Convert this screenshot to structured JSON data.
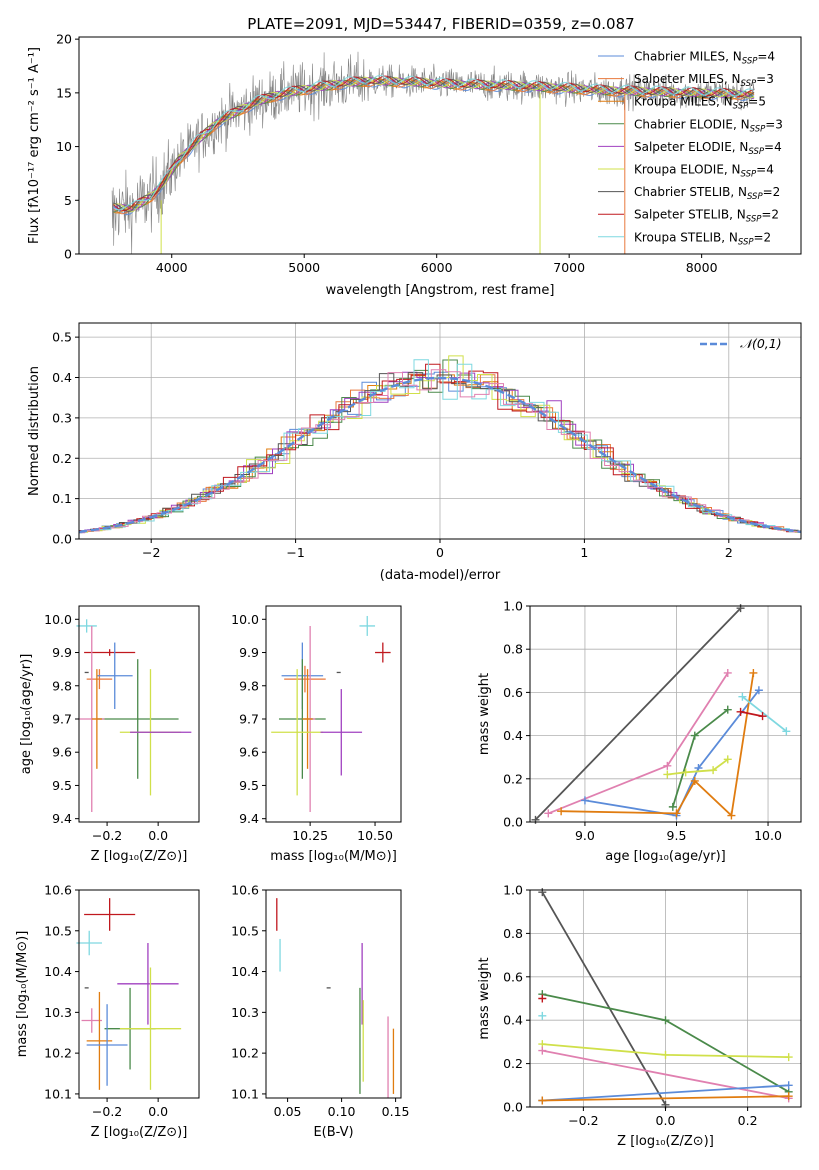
{
  "title": "PLATE=2091, MJD=53447, FIBERID=0359, z=0.087",
  "chart_data": [
    {
      "id": "spectrum",
      "type": "line",
      "xlabel": "wavelength [Angstrom, rest frame]",
      "ylabel": "Flux [fλ10⁻¹⁷ erg cm⁻² s⁻¹ A⁻¹]",
      "xlim": [
        3300,
        8750
      ],
      "ylim": [
        0,
        20.2
      ],
      "xticks": [
        4000,
        5000,
        6000,
        7000,
        8000
      ],
      "yticks": [
        0,
        5,
        10,
        15,
        20
      ],
      "continuum": {
        "x": [
          3550,
          3700,
          3850,
          3950,
          4050,
          4200,
          4350,
          4500,
          4650,
          4800,
          4950,
          5100,
          5300,
          5500,
          5800,
          6100,
          6400,
          6700,
          7000,
          7300,
          7600,
          7900,
          8200,
          8400
        ],
        "y": [
          4.3,
          4.2,
          5.4,
          6.8,
          8.7,
          10.6,
          12.3,
          13.3,
          14.2,
          14.8,
          15.2,
          15.5,
          15.9,
          16.1,
          16.0,
          15.8,
          15.7,
          15.6,
          15.4,
          15.2,
          15.1,
          15.0,
          14.9,
          14.8
        ]
      },
      "series": [
        {
          "name": "Chabrier MILES, N_SSP=4",
          "color": "#5b8bd9"
        },
        {
          "name": "Salpeter MILES, N_SSP=3",
          "color": "#e8783c"
        },
        {
          "name": "Kroupa MILES, N_SSP=5",
          "color": "#e07c10"
        },
        {
          "name": "Chabrier ELODIE, N_SSP=3",
          "color": "#4a8a4a"
        },
        {
          "name": "Salpeter ELODIE, N_SSP=4",
          "color": "#a040c0"
        },
        {
          "name": "Kroupa ELODIE, N_SSP=4",
          "color": "#d0e04a"
        },
        {
          "name": "Chabrier STELIB, N_SSP=2",
          "color": "#555555"
        },
        {
          "name": "Salpeter STELIB, N_SSP=2",
          "color": "#c0181e"
        },
        {
          "name": "Kroupa STELIB, N_SSP=2",
          "color": "#7fd8e0"
        }
      ],
      "legend_labels": [
        {
          "name": "Chabrier MILES, N",
          "sub": "SSP",
          "tail": "=4"
        },
        {
          "name": "Salpeter MILES, N",
          "sub": "SSP",
          "tail": "=3"
        },
        {
          "name": "Kroupa MILES, N",
          "sub": "SSP",
          "tail": "=5"
        },
        {
          "name": "Chabrier ELODIE, N",
          "sub": "SSP",
          "tail": "=3"
        },
        {
          "name": "Salpeter ELODIE, N",
          "sub": "SSP",
          "tail": "=4"
        },
        {
          "name": "Kroupa ELODIE, N",
          "sub": "SSP",
          "tail": "=4"
        },
        {
          "name": "Chabrier STELIB, N",
          "sub": "SSP",
          "tail": "=2"
        },
        {
          "name": "Salpeter STELIB, N",
          "sub": "SSP",
          "tail": "=2"
        },
        {
          "name": "Kroupa STELIB, N",
          "sub": "SSP",
          "tail": "=2"
        }
      ],
      "legend_placement": "upper right"
    },
    {
      "id": "residuals",
      "type": "histogram",
      "xlabel": "(data-model)/error",
      "ylabel": "Normed distribution",
      "xlim": [
        -2.5,
        2.5
      ],
      "ylim": [
        0,
        0.535
      ],
      "xticks": [
        -2,
        -1,
        0,
        1,
        2
      ],
      "yticks": [
        0.0,
        0.1,
        0.2,
        0.3,
        0.4,
        0.5
      ],
      "grid": true,
      "bin_width": 0.1,
      "reference": {
        "name": "𝒩(0,1)",
        "style": "dashed",
        "color": "#5b8bd9",
        "mean": 0,
        "sigma": 1
      },
      "legend_placement": "upper right"
    },
    {
      "id": "age_vs_Z",
      "type": "errorbar",
      "xlabel": "Z [log₁₀(Z/Z⊙)]",
      "ylabel": "age [log₁₀(age/yr)]",
      "xlim": [
        -0.31,
        0.16
      ],
      "ylim": [
        9.39,
        10.04
      ],
      "xticks": [
        -0.2,
        0.0
      ],
      "yticks": [
        9.4,
        9.5,
        9.6,
        9.7,
        9.8,
        9.9,
        10.0
      ],
      "points": [
        {
          "x": -0.28,
          "xerr": 0.0,
          "y": 9.84,
          "yerr": 0.0,
          "color": "#555555"
        },
        {
          "x": -0.23,
          "xerr": 0.05,
          "y": 9.82,
          "yerr": 0.03,
          "color": "#e8783c"
        },
        {
          "x": -0.28,
          "xerr": 0.04,
          "y": 9.98,
          "yerr": 0.02,
          "color": "#7fd8e0"
        },
        {
          "x": -0.19,
          "xerr": 0.1,
          "y": 9.9,
          "yerr": 0.01,
          "color": "#c0181e"
        },
        {
          "x": -0.17,
          "xerr": 0.07,
          "y": 9.83,
          "yerr": 0.1,
          "color": "#5b8bd9"
        },
        {
          "x": -0.08,
          "xerr": 0.16,
          "y": 9.7,
          "yerr": 0.18,
          "color": "#4a8a4a"
        },
        {
          "x": -0.26,
          "xerr": 0.05,
          "y": 9.7,
          "yerr": 0.28,
          "color": "#e080b0"
        },
        {
          "x": -0.24,
          "xerr": 0.02,
          "y": 9.7,
          "yerr": 0.15,
          "color": "#e07c10"
        },
        {
          "x": -0.03,
          "xerr": 0.12,
          "y": 9.66,
          "yerr": 0.19,
          "color": "#d0e04a"
        },
        {
          "x": 0.01,
          "xerr": 0.12,
          "y": 9.66,
          "yerr": 0.0,
          "color": "#a040c0"
        }
      ]
    },
    {
      "id": "age_vs_mass",
      "type": "errorbar",
      "xlabel": "mass [log₁₀(M/M⊙)]",
      "xlim": [
        10.08,
        10.6
      ],
      "ylim": [
        9.39,
        10.04
      ],
      "xticks": [
        10.25,
        10.5
      ],
      "yticks": [
        9.4,
        9.5,
        9.6,
        9.7,
        9.8,
        9.9,
        10.0
      ],
      "points": [
        {
          "x": 10.36,
          "xerr": 0.0,
          "y": 9.84,
          "yerr": 0.0,
          "color": "#555555"
        },
        {
          "x": 10.23,
          "xerr": 0.08,
          "y": 9.82,
          "yerr": 0.04,
          "color": "#e8783c"
        },
        {
          "x": 10.47,
          "xerr": 0.03,
          "y": 9.98,
          "yerr": 0.03,
          "color": "#7fd8e0"
        },
        {
          "x": 10.53,
          "xerr": 0.03,
          "y": 9.9,
          "yerr": 0.03,
          "color": "#c0181e"
        },
        {
          "x": 10.22,
          "xerr": 0.08,
          "y": 9.83,
          "yerr": 0.1,
          "color": "#5b8bd9"
        },
        {
          "x": 10.22,
          "xerr": 0.09,
          "y": 9.7,
          "yerr": 0.18,
          "color": "#4a8a4a"
        },
        {
          "x": 10.25,
          "xerr": 0.02,
          "y": 9.7,
          "yerr": 0.28,
          "color": "#e080b0"
        },
        {
          "x": 10.24,
          "xerr": 0.02,
          "y": 9.7,
          "yerr": 0.15,
          "color": "#e07c10"
        },
        {
          "x": 10.2,
          "xerr": 0.1,
          "y": 9.66,
          "yerr": 0.19,
          "color": "#d0e04a"
        },
        {
          "x": 10.37,
          "xerr": 0.08,
          "y": 9.66,
          "yerr": 0.13,
          "color": "#a040c0"
        }
      ]
    },
    {
      "id": "weight_vs_age",
      "type": "line",
      "xlabel": "age [log₁₀(age/yr)]",
      "ylabel": "mass weight",
      "xlim": [
        8.7,
        10.18
      ],
      "ylim": [
        0,
        1.0
      ],
      "xticks": [
        9.0,
        9.5,
        10.0
      ],
      "yticks": [
        0.0,
        0.2,
        0.4,
        0.6,
        0.8,
        1.0
      ],
      "grid": true,
      "series": [
        {
          "color": "#555555",
          "x": [
            8.73,
            9.85
          ],
          "y": [
            0.01,
            0.99
          ]
        },
        {
          "color": "#e080b0",
          "x": [
            8.8,
            9.45,
            9.78
          ],
          "y": [
            0.04,
            0.26,
            0.69
          ]
        },
        {
          "color": "#5b8bd9",
          "x": [
            9.0,
            9.5,
            9.62,
            9.95
          ],
          "y": [
            0.1,
            0.03,
            0.25,
            0.61
          ]
        },
        {
          "color": "#4a8a4a",
          "x": [
            9.48,
            9.6,
            9.78
          ],
          "y": [
            0.07,
            0.4,
            0.52
          ]
        },
        {
          "color": "#d0e04a",
          "x": [
            9.45,
            9.55,
            9.7,
            9.78
          ],
          "y": [
            0.22,
            0.23,
            0.24,
            0.29
          ]
        },
        {
          "color": "#e07c10",
          "x": [
            8.87,
            9.5,
            9.6,
            9.8,
            9.92
          ],
          "y": [
            0.05,
            0.04,
            0.19,
            0.03,
            0.69
          ]
        },
        {
          "color": "#7fd8e0",
          "x": [
            9.86,
            10.1
          ],
          "y": [
            0.58,
            0.42
          ]
        },
        {
          "color": "#c0181e",
          "x": [
            9.85,
            9.97
          ],
          "y": [
            0.51,
            0.49
          ]
        }
      ]
    },
    {
      "id": "mass_vs_Z",
      "type": "errorbar",
      "xlabel": "Z [log₁₀(Z/Z⊙)]",
      "ylabel": "mass [log₁₀(M/M⊙)]",
      "xlim": [
        -0.31,
        0.16
      ],
      "ylim": [
        10.09,
        10.6
      ],
      "xticks": [
        -0.2,
        0.0
      ],
      "yticks": [
        10.1,
        10.2,
        10.3,
        10.4,
        10.5,
        10.6
      ],
      "points": [
        {
          "x": -0.19,
          "xerr": 0.1,
          "y": 10.54,
          "yerr": 0.04,
          "color": "#c0181e"
        },
        {
          "x": -0.27,
          "xerr": 0.05,
          "y": 10.47,
          "yerr": 0.03,
          "color": "#7fd8e0"
        },
        {
          "x": -0.28,
          "xerr": 0.0,
          "y": 10.36,
          "yerr": 0.0,
          "color": "#555555"
        },
        {
          "x": -0.04,
          "xerr": 0.12,
          "y": 10.37,
          "yerr": 0.1,
          "color": "#a040c0"
        },
        {
          "x": -0.26,
          "xerr": 0.04,
          "y": 10.28,
          "yerr": 0.03,
          "color": "#e080b0"
        },
        {
          "x": -0.11,
          "xerr": 0.1,
          "y": 10.26,
          "yerr": 0.1,
          "color": "#4a8a4a"
        },
        {
          "x": -0.03,
          "xerr": 0.12,
          "y": 10.26,
          "yerr": 0.15,
          "color": "#d0e04a"
        },
        {
          "x": -0.23,
          "xerr": 0.05,
          "y": 10.23,
          "yerr": 0.12,
          "color": "#e07c10"
        },
        {
          "x": -0.2,
          "xerr": 0.08,
          "y": 10.22,
          "yerr": 0.1,
          "color": "#5b8bd9"
        }
      ]
    },
    {
      "id": "mass_vs_ebv",
      "type": "errorbar",
      "xlabel": "E(B-V)",
      "xlim": [
        0.03,
        0.155
      ],
      "ylim": [
        10.09,
        10.6
      ],
      "xticks": [
        0.05,
        0.1,
        0.15
      ],
      "yticks": [
        10.1,
        10.2,
        10.3,
        10.4,
        10.5,
        10.6
      ],
      "points": [
        {
          "x": 0.04,
          "xerr": 0.0,
          "y": 10.54,
          "yerr": 0.04,
          "color": "#c0181e"
        },
        {
          "x": 0.043,
          "xerr": 0.0,
          "y": 10.44,
          "yerr": 0.04,
          "color": "#7fd8e0"
        },
        {
          "x": 0.088,
          "xerr": 0.0,
          "y": 10.36,
          "yerr": 0.0,
          "color": "#555555"
        },
        {
          "x": 0.119,
          "xerr": 0.0,
          "y": 10.37,
          "yerr": 0.1,
          "color": "#a040c0"
        },
        {
          "x": 0.117,
          "xerr": 0.0,
          "y": 10.23,
          "yerr": 0.13,
          "color": "#4a8a4a"
        },
        {
          "x": 0.12,
          "xerr": 0.0,
          "y": 10.23,
          "yerr": 0.1,
          "color": "#d0e04a"
        },
        {
          "x": 0.143,
          "xerr": 0.0,
          "y": 10.19,
          "yerr": 0.1,
          "color": "#e080b0"
        },
        {
          "x": 0.148,
          "xerr": 0.0,
          "y": 10.18,
          "yerr": 0.08,
          "color": "#e07c10"
        }
      ]
    },
    {
      "id": "weight_vs_Z",
      "type": "line",
      "xlabel": "Z [log₁₀(Z/Z⊙)]",
      "ylabel": "mass weight",
      "xlim": [
        -0.33,
        0.33
      ],
      "ylim": [
        0,
        1.0
      ],
      "xticks": [
        -0.2,
        0.0,
        0.2
      ],
      "yticks": [
        0.0,
        0.2,
        0.4,
        0.6,
        0.8,
        1.0
      ],
      "grid": true,
      "series": [
        {
          "color": "#555555",
          "x": [
            -0.3,
            0.0
          ],
          "y": [
            0.99,
            0.01
          ]
        },
        {
          "color": "#4a8a4a",
          "x": [
            -0.3,
            0.0,
            0.3
          ],
          "y": [
            0.52,
            0.4,
            0.07
          ]
        },
        {
          "color": "#d0e04a",
          "x": [
            -0.3,
            0.0,
            0.3
          ],
          "y": [
            0.29,
            0.24,
            0.23
          ]
        },
        {
          "color": "#e080b0",
          "x": [
            -0.3,
            0.3
          ],
          "y": [
            0.26,
            0.04
          ]
        },
        {
          "color": "#5b8bd9",
          "x": [
            -0.3,
            0.3
          ],
          "y": [
            0.03,
            0.1
          ]
        },
        {
          "color": "#e07c10",
          "x": [
            -0.3,
            0.3
          ],
          "y": [
            0.03,
            0.05
          ]
        },
        {
          "color": "#7fd8e0",
          "x": [
            -0.3
          ],
          "y": [
            0.42
          ]
        },
        {
          "color": "#c0181e",
          "x": [
            -0.3
          ],
          "y": [
            0.5
          ]
        }
      ]
    }
  ]
}
